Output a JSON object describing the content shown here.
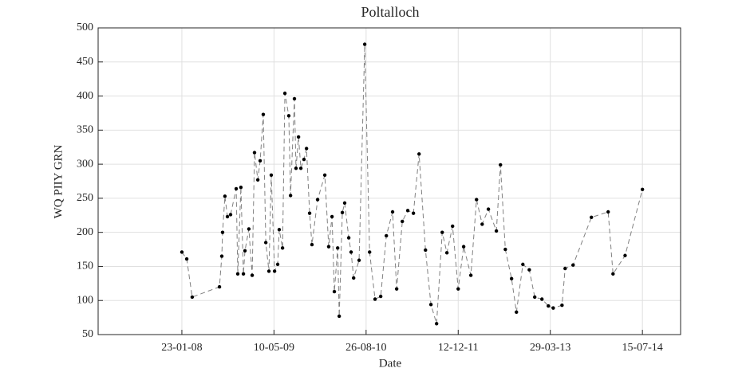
{
  "chart_data": {
    "type": "line",
    "title": "Poltalloch",
    "xlabel": "Date",
    "ylabel": "WQ PIIY GRN",
    "x": [
      "2008-01-23",
      "2008-02-17",
      "2008-03-16",
      "2008-08-03",
      "2008-08-15",
      "2008-08-19",
      "2008-08-31",
      "2008-09-13",
      "2008-09-29",
      "2008-10-28",
      "2008-11-05",
      "2008-11-21",
      "2008-12-04",
      "2008-12-12",
      "2009-01-01",
      "2009-01-18",
      "2009-01-30",
      "2009-02-16",
      "2009-02-28",
      "2009-03-16",
      "2009-03-29",
      "2009-04-14",
      "2009-04-26",
      "2009-05-13",
      "2009-05-29",
      "2009-06-06",
      "2009-06-23",
      "2009-07-05",
      "2009-07-25",
      "2009-08-03",
      "2009-08-23",
      "2009-08-31",
      "2009-09-13",
      "2009-09-25",
      "2009-10-11",
      "2009-10-24",
      "2009-11-09",
      "2009-11-21",
      "2009-12-20",
      "2010-01-26",
      "2010-02-15",
      "2010-03-04",
      "2010-03-16",
      "2010-04-02",
      "2010-04-10",
      "2010-04-26",
      "2010-05-08",
      "2010-05-29",
      "2010-06-10",
      "2010-06-23",
      "2010-07-21",
      "2010-08-19",
      "2010-09-13",
      "2010-10-11",
      "2010-11-09",
      "2010-12-08",
      "2011-01-09",
      "2011-01-30",
      "2011-02-28",
      "2011-03-28",
      "2011-04-26",
      "2011-05-25",
      "2011-06-27",
      "2011-07-25",
      "2011-08-23",
      "2011-09-21",
      "2011-10-15",
      "2011-11-13",
      "2011-12-12",
      "2012-01-09",
      "2012-02-15",
      "2012-03-15",
      "2012-04-13",
      "2012-05-15",
      "2012-06-25",
      "2012-07-16",
      "2012-08-10",
      "2012-09-11",
      "2012-10-06",
      "2012-11-08",
      "2012-12-11",
      "2013-01-08",
      "2013-02-14",
      "2013-03-19",
      "2013-04-13",
      "2013-05-28",
      "2013-06-13",
      "2013-07-24",
      "2013-10-26",
      "2014-01-20",
      "2014-02-14",
      "2014-04-17",
      "2014-07-15"
    ],
    "values": [
      171,
      161,
      105,
      120,
      165,
      200,
      253,
      223,
      226,
      264,
      139,
      266,
      139,
      173,
      205,
      137,
      317,
      277,
      305,
      373,
      185,
      143,
      284,
      143,
      153,
      204,
      177,
      404,
      371,
      254,
      396,
      294,
      340,
      294,
      307,
      323,
      228,
      182,
      248,
      284,
      179,
      223,
      113,
      177,
      77,
      229,
      243,
      192,
      171,
      133,
      159,
      476,
      171,
      102,
      106,
      195,
      230,
      117,
      216,
      232,
      228,
      315,
      174,
      94,
      66,
      200,
      170,
      209,
      117,
      179,
      137,
      248,
      212,
      234,
      202,
      299,
      175,
      132,
      83,
      153,
      145,
      105,
      102,
      92,
      89,
      93,
      147,
      152,
      222,
      230,
      139,
      166,
      263
    ],
    "color": "#808080",
    "marker_color": "#000000",
    "xlim": [
      "2006-11-19",
      "2015-01-27"
    ],
    "xticks": [
      {
        "value": "2008-01-23",
        "label": "23-01-08"
      },
      {
        "value": "2009-05-10",
        "label": "10-05-09"
      },
      {
        "value": "2010-08-26",
        "label": "26-08-10"
      },
      {
        "value": "2011-12-12",
        "label": "12-12-11"
      },
      {
        "value": "2013-03-29",
        "label": "29-03-13"
      },
      {
        "value": "2014-07-15",
        "label": "15-07-14"
      }
    ],
    "ylim": [
      50,
      500
    ],
    "yticks": [
      50,
      100,
      150,
      200,
      250,
      300,
      350,
      400,
      450,
      500
    ],
    "grid": true
  }
}
